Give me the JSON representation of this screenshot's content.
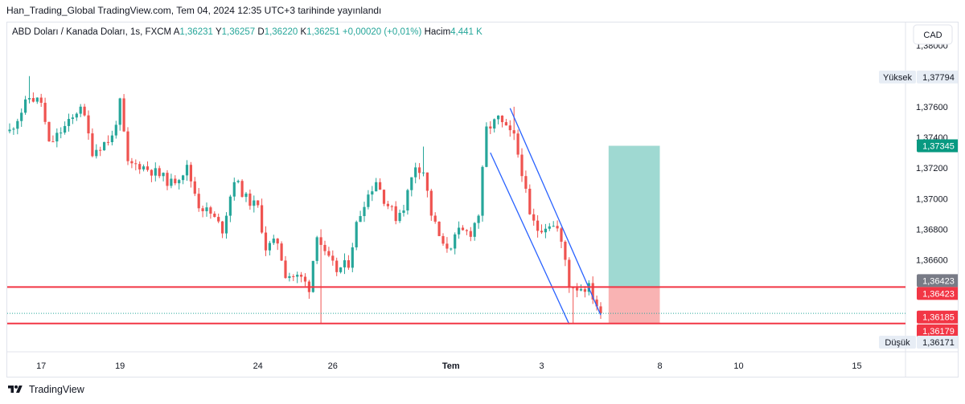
{
  "header": {
    "published": "Han_Trading_Global TradingView.com, Tem 04, 2024 12:35 UTC+3 tarihinde yayınlandı"
  },
  "legend": {
    "symbol": "ABD Doları / Kanada Doları, 1s, FXCM",
    "open_label": "A",
    "open": "1,36231",
    "high_label": "Y",
    "high": "1,36257",
    "low_label": "D",
    "low": "1,36220",
    "close_label": "K",
    "close": "1,36251",
    "change": "+0,00020 (+0,01%)",
    "volume_label": "Hacim",
    "volume": "4,441 K"
  },
  "currency_button": "CAD",
  "footer": {
    "brand": "TradingView"
  },
  "colors": {
    "up": "#26a69a",
    "down": "#ef5350",
    "line": "#f23645",
    "channel": "#2962ff",
    "target": "#9fd9d2",
    "stop": "#f9b3b3"
  },
  "chart_data": {
    "type": "candlestick",
    "symbol": "USD/CAD",
    "timeframe": "1s",
    "ylim": [
      1.36,
      1.3815
    ],
    "y_ticks": [
      {
        "value": 1.38,
        "label": "1,38000"
      },
      {
        "value": 1.376,
        "label": "1,37600"
      },
      {
        "value": 1.374,
        "label": "1,37400"
      },
      {
        "value": 1.372,
        "label": "1,37200"
      },
      {
        "value": 1.37,
        "label": "1,37000"
      },
      {
        "value": 1.368,
        "label": "1,36800"
      },
      {
        "value": 1.366,
        "label": "1,36600"
      }
    ],
    "x_ticks": [
      {
        "i": 8,
        "label": "17",
        "bold": false
      },
      {
        "i": 28,
        "label": "19",
        "bold": false
      },
      {
        "i": 63,
        "label": "24",
        "bold": false
      },
      {
        "i": 82,
        "label": "26",
        "bold": false
      },
      {
        "i": 112,
        "label": "Tem",
        "bold": true
      },
      {
        "i": 135,
        "label": "3",
        "bold": false
      },
      {
        "i": 165,
        "label": "8",
        "bold": false
      },
      {
        "i": 185,
        "label": "10",
        "bold": false
      },
      {
        "i": 215,
        "label": "15",
        "bold": false
      }
    ],
    "price_path": [
      [
        0,
        1.3744
      ],
      [
        5,
        1.3766
      ],
      [
        8,
        1.3763
      ],
      [
        10,
        1.3735
      ],
      [
        13,
        1.3744
      ],
      [
        16,
        1.3752
      ],
      [
        18,
        1.3762
      ],
      [
        21,
        1.3731
      ],
      [
        26,
        1.374
      ],
      [
        28,
        1.3762
      ],
      [
        30,
        1.3722
      ],
      [
        33,
        1.3722
      ],
      [
        37,
        1.3717
      ],
      [
        41,
        1.371
      ],
      [
        45,
        1.372
      ],
      [
        48,
        1.3696
      ],
      [
        51,
        1.369
      ],
      [
        54,
        1.368
      ],
      [
        57,
        1.3713
      ],
      [
        60,
        1.37
      ],
      [
        63,
        1.3694
      ],
      [
        65,
        1.3668
      ],
      [
        68,
        1.3672
      ],
      [
        70,
        1.3651
      ],
      [
        74,
        1.3648
      ],
      [
        76,
        1.3642
      ],
      [
        78,
        1.3678
      ],
      [
        80,
        1.3663
      ],
      [
        83,
        1.3653
      ],
      [
        86,
        1.3658
      ],
      [
        88,
        1.3683
      ],
      [
        90,
        1.3698
      ],
      [
        93,
        1.3712
      ],
      [
        95,
        1.37
      ],
      [
        98,
        1.3688
      ],
      [
        100,
        1.3695
      ],
      [
        103,
        1.3722
      ],
      [
        105,
        1.3718
      ],
      [
        107,
        1.369
      ],
      [
        110,
        1.3668
      ],
      [
        112,
        1.367
      ],
      [
        114,
        1.3678
      ],
      [
        117,
        1.3678
      ],
      [
        119,
        1.369
      ],
      [
        121,
        1.3745
      ],
      [
        124,
        1.3752
      ],
      [
        126,
        1.3745
      ],
      [
        128,
        1.374
      ],
      [
        130,
        1.3718
      ],
      [
        132,
        1.3688
      ],
      [
        134,
        1.368
      ],
      [
        137,
        1.3684
      ],
      [
        139,
        1.368
      ],
      [
        141,
        1.366
      ],
      [
        142,
        1.3644
      ],
      [
        144,
        1.3642
      ],
      [
        147,
        1.3642
      ],
      [
        150,
        1.3625
      ]
    ],
    "spikes": [
      {
        "i": 5,
        "high": 1.378
      },
      {
        "i": 79,
        "low": 1.36182,
        "high": 1.368
      },
      {
        "i": 128,
        "high": 1.376
      },
      {
        "i": 105,
        "high": 1.3734
      },
      {
        "i": 143,
        "low": 1.36185
      }
    ],
    "horizontal_lines": [
      {
        "value": 1.36423,
        "label": "1,36423"
      },
      {
        "value": 1.36185,
        "label": "1,36185"
      }
    ],
    "current_price": 1.36251,
    "position": {
      "entry": 1.36423,
      "target": 1.37345,
      "stop": 1.36185,
      "from_i": 152,
      "to_i": 165
    },
    "channel": {
      "upper": [
        [
          127,
          1.3759
        ],
        [
          150,
          1.3624
        ]
      ],
      "lower": [
        [
          122,
          1.373
        ],
        [
          142,
          1.3618
        ]
      ]
    },
    "axis_labels": [
      {
        "value": 1.37794,
        "label": "1,37794",
        "caption": "Yüksek",
        "bg": "#e7edf5",
        "fg": "#131722"
      },
      {
        "value": 1.37345,
        "label": "1,37345",
        "bg": "#089981",
        "fg": "#ffffff"
      },
      {
        "value": 1.36423,
        "label": "1,36423",
        "bg": "#787b86",
        "fg": "#ffffff",
        "stack": "top"
      },
      {
        "value": 1.36423,
        "label": "1,36423",
        "bg": "#f23645",
        "fg": "#ffffff",
        "stack": "bottom"
      },
      {
        "value": 1.36185,
        "label": "1,36185",
        "bg": "#f23645",
        "fg": "#ffffff",
        "stack": "top"
      },
      {
        "value": 1.36179,
        "label": "1,36179",
        "bg": "#f23645",
        "fg": "#ffffff",
        "stack": "bottom"
      },
      {
        "value": 1.36171,
        "label": "1,36171",
        "caption": "Düşük",
        "bg": "#e7edf5",
        "fg": "#131722",
        "stack": "low"
      }
    ]
  }
}
